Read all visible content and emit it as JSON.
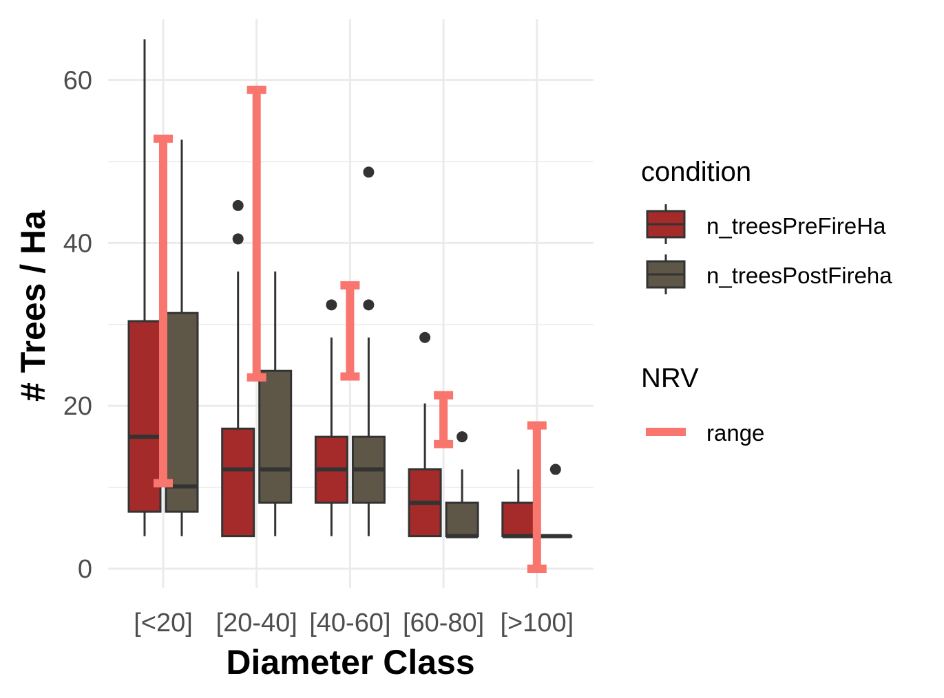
{
  "chart_data": {
    "type": "boxplot",
    "title": "",
    "xlabel": "Diameter Class",
    "ylabel": "# Trees / Ha",
    "ylim": [
      -4,
      68
    ],
    "yticks": [
      0,
      20,
      40,
      60
    ],
    "grid": true,
    "legend_position": "right",
    "categories": [
      "[<20]",
      "[20-40]",
      "[40-60]",
      "[60-80]",
      "[>100]"
    ],
    "series": [
      {
        "name": "n_treesPreFireHa",
        "color": "#a52a2a",
        "boxes": [
          {
            "whisker_low": 4,
            "q1": 7,
            "median": 16.2,
            "q3": 30.4,
            "whisker_high": 65,
            "outliers": []
          },
          {
            "whisker_low": 4,
            "q1": 4,
            "median": 12.2,
            "q3": 17.2,
            "whisker_high": 36.5,
            "outliers": [
              40.5,
              44.6
            ]
          },
          {
            "whisker_low": 4,
            "q1": 8.1,
            "median": 12.2,
            "q3": 16.2,
            "whisker_high": 28.4,
            "outliers": [
              32.4
            ]
          },
          {
            "whisker_low": 4,
            "q1": 4,
            "median": 8.1,
            "q3": 12.2,
            "whisker_high": 20.3,
            "outliers": [
              28.4
            ]
          },
          {
            "whisker_low": 4,
            "q1": 4,
            "median": 4,
            "q3": 8.1,
            "whisker_high": 12.2,
            "outliers": []
          }
        ]
      },
      {
        "name": "n_treesPostFireha",
        "color": "#5e5646",
        "boxes": [
          {
            "whisker_low": 4,
            "q1": 7,
            "median": 10.1,
            "q3": 31.4,
            "whisker_high": 52.7,
            "outliers": []
          },
          {
            "whisker_low": 4,
            "q1": 8.1,
            "median": 12.2,
            "q3": 24.3,
            "whisker_high": 36.5,
            "outliers": []
          },
          {
            "whisker_low": 4,
            "q1": 8.1,
            "median": 12.2,
            "q3": 16.2,
            "whisker_high": 28.4,
            "outliers": [
              32.4,
              48.7
            ]
          },
          {
            "whisker_low": 4,
            "q1": 4,
            "median": 4,
            "q3": 8.1,
            "whisker_high": 12.2,
            "outliers": [
              16.2
            ]
          },
          {
            "whisker_low": 4,
            "q1": 4,
            "median": 4,
            "q3": 4,
            "whisker_high": 4,
            "outliers": [
              12.2
            ]
          }
        ]
      }
    ],
    "nrv": {
      "name": "range",
      "color": "#f8766d",
      "ranges": [
        {
          "low": 10.5,
          "high": 52.8
        },
        {
          "low": 23.5,
          "high": 58.8
        },
        {
          "low": 23.6,
          "high": 34.8
        },
        {
          "low": 15.3,
          "high": 21.3
        },
        {
          "low": 0,
          "high": 17.6
        }
      ]
    },
    "legend": {
      "condition_title": "condition",
      "condition_items": [
        "n_treesPreFireHa",
        "n_treesPostFireha"
      ],
      "nrv_title": "NRV",
      "nrv_items": [
        "range"
      ]
    }
  }
}
